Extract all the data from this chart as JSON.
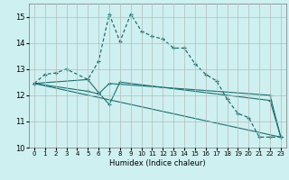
{
  "xlabel": "Humidex (Indice chaleur)",
  "background_color": "#cff0f0",
  "line_color": "#1a7070",
  "xlim": [
    -0.5,
    23.5
  ],
  "ylim": [
    10,
    15.5
  ],
  "yticks": [
    10,
    11,
    12,
    13,
    14,
    15
  ],
  "xticks": [
    0,
    1,
    2,
    3,
    4,
    5,
    6,
    7,
    8,
    9,
    10,
    11,
    12,
    13,
    14,
    15,
    16,
    17,
    18,
    19,
    20,
    21,
    22,
    23
  ],
  "series1_x": [
    0,
    1,
    2,
    3,
    5,
    6,
    7,
    8,
    9,
    10,
    11,
    12,
    13,
    14,
    15,
    16,
    17,
    18,
    19,
    20,
    21,
    22,
    23
  ],
  "series1_y": [
    12.45,
    12.8,
    12.85,
    13.0,
    12.6,
    13.3,
    15.1,
    14.05,
    15.1,
    14.45,
    14.25,
    14.15,
    13.8,
    13.8,
    13.2,
    12.8,
    12.55,
    11.85,
    11.3,
    11.15,
    10.4,
    10.4,
    10.4
  ],
  "series2_x": [
    0,
    5,
    6,
    7,
    8,
    22,
    23
  ],
  "series2_y": [
    12.45,
    12.6,
    12.1,
    11.65,
    12.5,
    11.8,
    10.4
  ],
  "series3_x": [
    0,
    5,
    6,
    7,
    22,
    23
  ],
  "series3_y": [
    12.45,
    12.15,
    12.05,
    12.45,
    12.0,
    10.4
  ],
  "series4_x": [
    0,
    23
  ],
  "series4_y": [
    12.45,
    10.4
  ]
}
